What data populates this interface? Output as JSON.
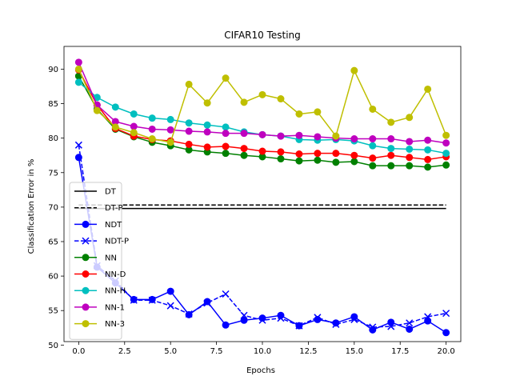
{
  "chart_data": {
    "type": "line",
    "title": "CIFAR10 Testing",
    "xlabel": "Epochs",
    "ylabel": "Classification Error in %",
    "xlim": [
      -0.8,
      20.8
    ],
    "ylim": [
      50.5,
      93.3
    ],
    "xticks": [
      0.0,
      2.5,
      5.0,
      7.5,
      10.0,
      12.5,
      15.0,
      17.5,
      20.0
    ],
    "xtick_labels": [
      "0.0",
      "2.5",
      "5.0",
      "7.5",
      "10.0",
      "12.5",
      "15.0",
      "17.5",
      "20.0"
    ],
    "yticks": [
      50,
      55,
      60,
      65,
      70,
      75,
      80,
      85,
      90
    ],
    "ytick_labels": [
      "50",
      "55",
      "60",
      "65",
      "70",
      "75",
      "80",
      "85",
      "90"
    ],
    "grid": false,
    "legend_position": "center-left",
    "x": [
      0,
      1,
      2,
      3,
      4,
      5,
      6,
      7,
      8,
      9,
      10,
      11,
      12,
      13,
      14,
      15,
      16,
      17,
      18,
      19,
      20
    ],
    "series": [
      {
        "name": "DT",
        "color": "#000000",
        "line": "solid",
        "marker": "none",
        "x": [
          0,
          20
        ],
        "values": [
          69.8,
          69.8
        ]
      },
      {
        "name": "DT-P",
        "color": "#000000",
        "line": "dashed",
        "marker": "none",
        "x": [
          0,
          20
        ],
        "values": [
          70.3,
          70.3
        ]
      },
      {
        "name": "NDT",
        "color": "#0000ff",
        "line": "solid",
        "marker": "circle",
        "values": [
          77.2,
          61.3,
          59.0,
          56.6,
          56.6,
          57.8,
          54.4,
          56.3,
          52.9,
          53.6,
          53.9,
          54.3,
          52.8,
          53.7,
          53.2,
          54.1,
          52.2,
          53.3,
          52.3,
          53.5,
          51.8
        ]
      },
      {
        "name": "NDT-P",
        "color": "#0000ff",
        "line": "dashed",
        "marker": "x",
        "values": [
          79.0,
          61.5,
          59.3,
          56.5,
          56.5,
          55.7,
          54.5,
          56.1,
          57.4,
          54.3,
          53.6,
          53.9,
          52.8,
          54.0,
          53.0,
          53.7,
          52.6,
          52.7,
          53.2,
          54.1,
          54.6
        ]
      },
      {
        "name": "NN",
        "color": "#008000",
        "line": "solid",
        "marker": "circle",
        "values": [
          89.0,
          84.2,
          81.3,
          80.2,
          79.4,
          78.9,
          78.3,
          78.0,
          77.8,
          77.5,
          77.3,
          77.0,
          76.7,
          76.8,
          76.5,
          76.6,
          76.0,
          76.0,
          76.0,
          75.8,
          76.1
        ]
      },
      {
        "name": "NN-D",
        "color": "#ff0000",
        "line": "solid",
        "marker": "circle",
        "values": [
          89.9,
          84.8,
          81.4,
          80.3,
          79.8,
          79.6,
          79.1,
          78.7,
          78.8,
          78.5,
          78.1,
          78.0,
          77.7,
          77.8,
          77.8,
          77.5,
          77.1,
          77.5,
          77.2,
          76.9,
          77.3
        ]
      },
      {
        "name": "NN-H",
        "color": "#00bfbf",
        "line": "solid",
        "marker": "circle",
        "values": [
          88.1,
          85.9,
          84.5,
          83.5,
          82.9,
          82.7,
          82.2,
          81.9,
          81.6,
          80.9,
          80.5,
          80.3,
          79.8,
          79.7,
          79.8,
          79.6,
          78.9,
          78.5,
          78.4,
          78.3,
          77.8
        ]
      },
      {
        "name": "NN-1",
        "color": "#bf00bf",
        "line": "solid",
        "marker": "circle",
        "values": [
          91.0,
          84.8,
          82.4,
          81.7,
          81.3,
          81.2,
          81.0,
          80.9,
          80.7,
          80.7,
          80.5,
          80.3,
          80.4,
          80.2,
          80.0,
          79.9,
          79.9,
          79.9,
          79.5,
          79.7,
          79.3
        ]
      },
      {
        "name": "NN-3",
        "color": "#bfbf00",
        "line": "solid",
        "marker": "circle",
        "values": [
          90.0,
          84.0,
          81.6,
          80.8,
          79.9,
          79.4,
          87.8,
          85.1,
          88.7,
          85.2,
          86.3,
          85.7,
          83.5,
          83.8,
          80.3,
          89.8,
          84.2,
          82.3,
          83.0,
          87.1,
          80.4
        ]
      }
    ]
  }
}
